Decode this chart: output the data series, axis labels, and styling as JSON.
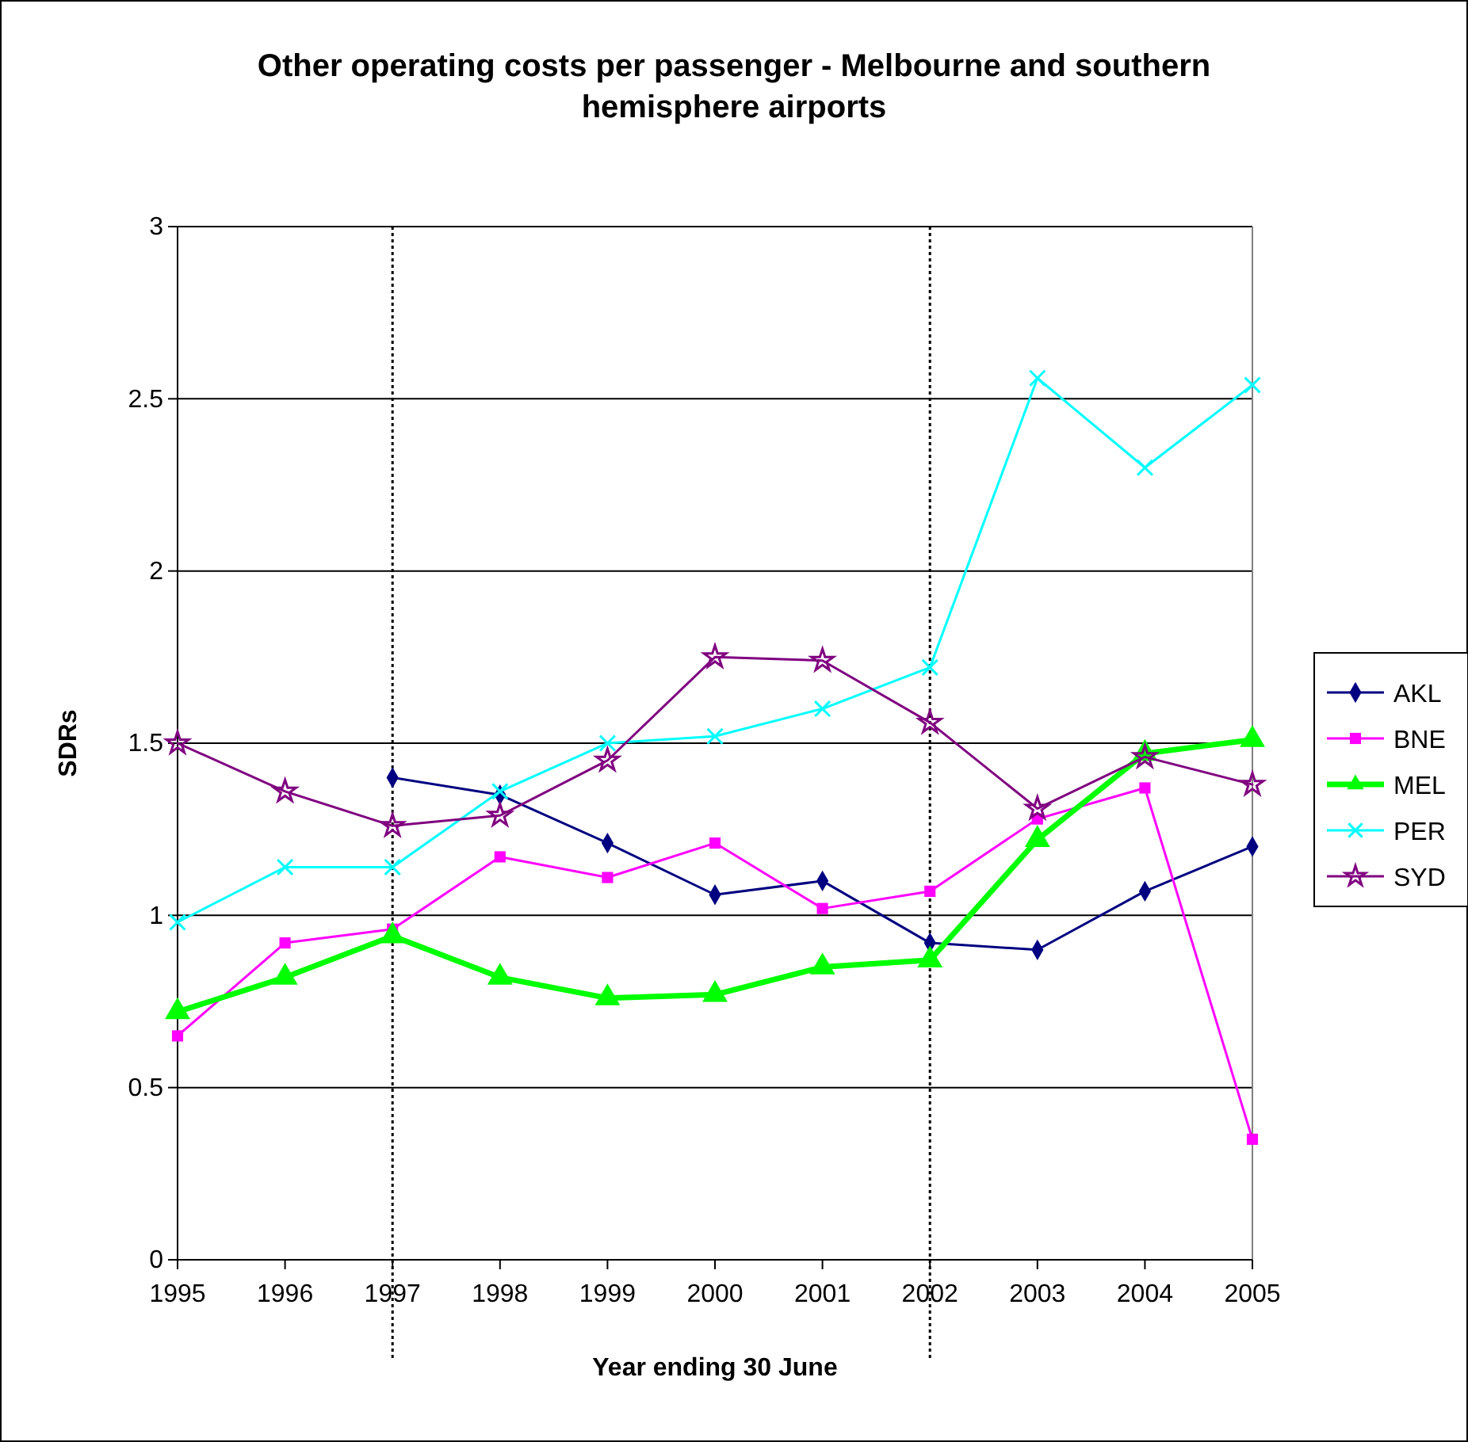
{
  "chart_data": {
    "type": "line",
    "title": "Other operating costs per passenger - Melbourne and southern hemisphere airports",
    "xlabel": "Year ending 30 June",
    "ylabel": "SDRs",
    "x": [
      1995,
      1996,
      1997,
      1998,
      1999,
      2000,
      2001,
      2002,
      2003,
      2004,
      2005
    ],
    "xlim": [
      1995,
      2005
    ],
    "xticks": [
      1995,
      1996,
      1997,
      1998,
      1999,
      2000,
      2001,
      2002,
      2003,
      2004,
      2005
    ],
    "ylim": [
      0,
      3
    ],
    "yticks": [
      0,
      0.5,
      1,
      1.5,
      2,
      2.5,
      3
    ],
    "grid": "y",
    "legend": "right",
    "ref_lines": [
      {
        "axis": "x",
        "value": 1997,
        "line_style": "dotted",
        "color": "#000000"
      },
      {
        "axis": "x",
        "value": 2002,
        "line_style": "dotted",
        "color": "#000000"
      }
    ],
    "series": [
      {
        "name": "AKL",
        "color": "#000080",
        "marker": "diamond",
        "values": [
          null,
          null,
          1.4,
          1.35,
          1.21,
          1.06,
          1.1,
          0.92,
          0.9,
          1.07,
          1.2
        ]
      },
      {
        "name": "BNE",
        "color": "#ff00ff",
        "marker": "square",
        "values": [
          0.65,
          0.92,
          0.96,
          1.17,
          1.11,
          1.21,
          1.02,
          1.07,
          1.28,
          1.37,
          0.35
        ]
      },
      {
        "name": "MEL",
        "color": "#00ff00",
        "marker": "triangle",
        "values": [
          0.72,
          0.82,
          0.94,
          0.82,
          0.76,
          0.77,
          0.85,
          0.87,
          1.22,
          1.47,
          1.51
        ]
      },
      {
        "name": "PER",
        "color": "#00ffff",
        "marker": "cross",
        "values": [
          0.98,
          1.14,
          1.14,
          1.36,
          1.5,
          1.52,
          1.6,
          1.72,
          2.56,
          2.3,
          2.54
        ]
      },
      {
        "name": "SYD",
        "color": "#800080",
        "marker": "star",
        "values": [
          1.5,
          1.36,
          1.26,
          1.29,
          1.45,
          1.75,
          1.74,
          1.56,
          1.31,
          1.46,
          1.38
        ]
      }
    ]
  }
}
